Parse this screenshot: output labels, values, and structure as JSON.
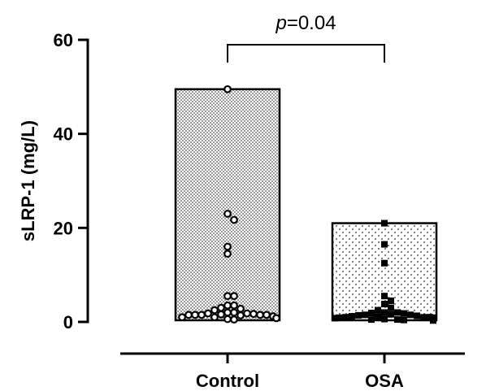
{
  "chart_data": {
    "type": "bar",
    "ylabel": "sLRP-1 (mg/L)",
    "xlabel": "",
    "ylim": [
      0,
      60
    ],
    "yticks": [
      "0",
      "20",
      "40",
      "60"
    ],
    "categories": [
      "Control",
      "OSA"
    ],
    "bar_values": [
      49.5,
      21
    ],
    "bar_patterns": [
      "checkered",
      "dotted"
    ],
    "points": [
      {
        "category": "Control",
        "marker": "open-circle",
        "values": [
          49.5,
          23,
          21.7,
          16,
          14.5,
          5.5,
          5.5,
          3.5,
          3.5,
          3,
          2.8,
          2.5,
          2,
          2,
          1.8,
          1.8,
          1.7,
          1.6,
          1.5,
          1.5,
          1.5,
          1.5,
          1.5,
          1.4,
          1.2,
          1,
          1,
          0.8,
          0.6,
          0.5
        ]
      },
      {
        "category": "OSA",
        "marker": "filled-square",
        "values": [
          21,
          16.5,
          12.5,
          5.5,
          4.5,
          3.8,
          3,
          2.5,
          2,
          2,
          1.9,
          1.8,
          1.6,
          1.5,
          1.5,
          1.4,
          1.3,
          1.2,
          1.1,
          1,
          1,
          1,
          0.9,
          0.9,
          0.8,
          0.8,
          0.7,
          0.6,
          0.5,
          0.5,
          0.4,
          0.3
        ]
      }
    ],
    "annotation": {
      "text_italic": "p",
      "text": "=0.04",
      "between": [
        "Control",
        "OSA"
      ]
    }
  }
}
